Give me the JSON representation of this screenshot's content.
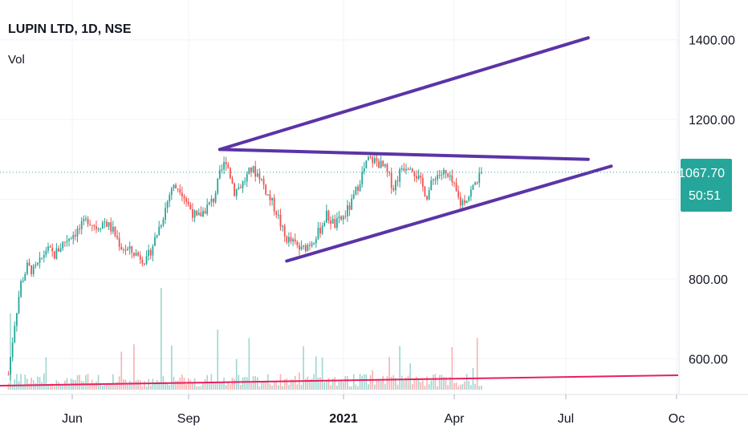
{
  "symbol": {
    "title": "LUPIN LTD, 1D, NSE",
    "indicator": "Vol"
  },
  "price_badge": {
    "price": "1067.70",
    "countdown": "50:51",
    "color": "#26a69a"
  },
  "colors": {
    "up": "#26a69a",
    "down": "#ef5350",
    "trendline": "#5b34a6",
    "ma_line": "#e91e63",
    "grid": "#f0f3fa",
    "last_price_line": "#26a69a"
  },
  "chart_data": {
    "type": "candlestick",
    "title": "LUPIN LTD, 1D, NSE",
    "indicator": "Vol",
    "y_ticks": [
      "1400.00",
      "1200.00",
      "800.00",
      "600.00"
    ],
    "x_ticks": [
      "Jun",
      "Sep",
      "2021",
      "Apr",
      "Jul",
      "Oc"
    ],
    "ylim": [
      510,
      1500
    ],
    "last_price": 1067.7,
    "price_path": [
      {
        "d": 0,
        "p": 560
      },
      {
        "d": 3,
        "p": 690
      },
      {
        "d": 6,
        "p": 790
      },
      {
        "d": 9,
        "p": 830
      },
      {
        "d": 12,
        "p": 820
      },
      {
        "d": 15,
        "p": 840
      },
      {
        "d": 18,
        "p": 875
      },
      {
        "d": 22,
        "p": 860
      },
      {
        "d": 26,
        "p": 890
      },
      {
        "d": 30,
        "p": 910
      },
      {
        "d": 34,
        "p": 925
      },
      {
        "d": 38,
        "p": 950
      },
      {
        "d": 42,
        "p": 930
      },
      {
        "d": 46,
        "p": 945
      },
      {
        "d": 50,
        "p": 920
      },
      {
        "d": 54,
        "p": 880
      },
      {
        "d": 58,
        "p": 870
      },
      {
        "d": 62,
        "p": 860
      },
      {
        "d": 66,
        "p": 845
      },
      {
        "d": 70,
        "p": 900
      },
      {
        "d": 74,
        "p": 960
      },
      {
        "d": 78,
        "p": 1030
      },
      {
        "d": 82,
        "p": 1030
      },
      {
        "d": 86,
        "p": 985
      },
      {
        "d": 90,
        "p": 950
      },
      {
        "d": 94,
        "p": 975
      },
      {
        "d": 98,
        "p": 1000
      },
      {
        "d": 101,
        "p": 1060
      },
      {
        "d": 104,
        "p": 1100
      },
      {
        "d": 108,
        "p": 1020
      },
      {
        "d": 112,
        "p": 1040
      },
      {
        "d": 116,
        "p": 1075
      },
      {
        "d": 120,
        "p": 1060
      },
      {
        "d": 124,
        "p": 1010
      },
      {
        "d": 128,
        "p": 970
      },
      {
        "d": 132,
        "p": 905
      },
      {
        "d": 136,
        "p": 890
      },
      {
        "d": 140,
        "p": 872
      },
      {
        "d": 144,
        "p": 890
      },
      {
        "d": 148,
        "p": 915
      },
      {
        "d": 152,
        "p": 960
      },
      {
        "d": 156,
        "p": 935
      },
      {
        "d": 160,
        "p": 955
      },
      {
        "d": 164,
        "p": 990
      },
      {
        "d": 168,
        "p": 1050
      },
      {
        "d": 172,
        "p": 1100
      },
      {
        "d": 176,
        "p": 1095
      },
      {
        "d": 180,
        "p": 1075
      },
      {
        "d": 184,
        "p": 1030
      },
      {
        "d": 188,
        "p": 1080
      },
      {
        "d": 192,
        "p": 1090
      },
      {
        "d": 196,
        "p": 1050
      },
      {
        "d": 200,
        "p": 1010
      },
      {
        "d": 204,
        "p": 1060
      },
      {
        "d": 208,
        "p": 1065
      },
      {
        "d": 212,
        "p": 1040
      },
      {
        "d": 216,
        "p": 990
      },
      {
        "d": 220,
        "p": 1010
      },
      {
        "d": 224,
        "p": 1050
      },
      {
        "d": 226,
        "p": 1067.7
      }
    ],
    "trendlines": [
      {
        "x1": 101,
        "y1": 1125,
        "x2": 277,
        "y2": 1405
      },
      {
        "x1": 101,
        "y1": 1125,
        "x2": 277,
        "y2": 1100
      },
      {
        "x1": 133,
        "y1": 845,
        "x2": 288,
        "y2": 1083
      }
    ],
    "ma_line": {
      "y_start": 520,
      "y_end": 537
    }
  }
}
